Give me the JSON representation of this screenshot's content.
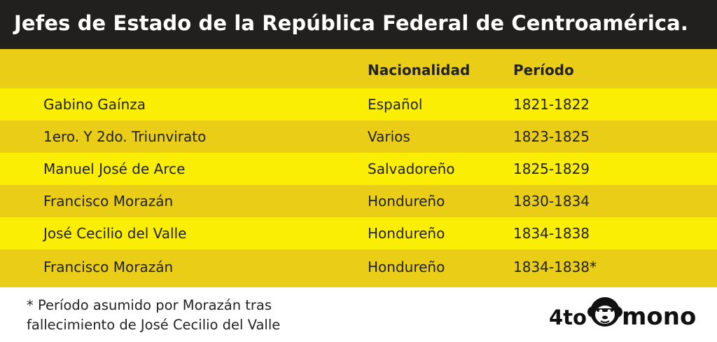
{
  "title": "Jefes de Estado de la República Federal de Centroamérica.",
  "table": {
    "headers": [
      "",
      "Nacionalidad",
      "Período"
    ],
    "rows": [
      [
        "Gabino Gaínza",
        "Español",
        "1821-1822"
      ],
      [
        "1ero. Y 2do. Triunvirato",
        "Varios",
        "1823-1825"
      ],
      [
        "Manuel José de Arce",
        "Salvadoreño",
        "1825-1829"
      ],
      [
        "Francisco Morazán",
        "Hondureño",
        "1830-1834"
      ],
      [
        "José Cecilio del Valle",
        "Hondureño",
        "1834-1838"
      ],
      [
        "Francisco Morazán",
        "Hondureño",
        "1834-1838*"
      ]
    ]
  },
  "footnote": {
    "line1": "* Período asumido por Morazán tras",
    "line2": "fallecimiento de José Cecilio del Valle"
  },
  "logo": {
    "left_text": "4to",
    "right_text": "mono",
    "icon": "monkey-face-icon"
  },
  "colors": {
    "title_bg": "#221f1f",
    "row_dark": "#e9cd16",
    "row_bright": "#fbee05",
    "text": "#222222"
  }
}
